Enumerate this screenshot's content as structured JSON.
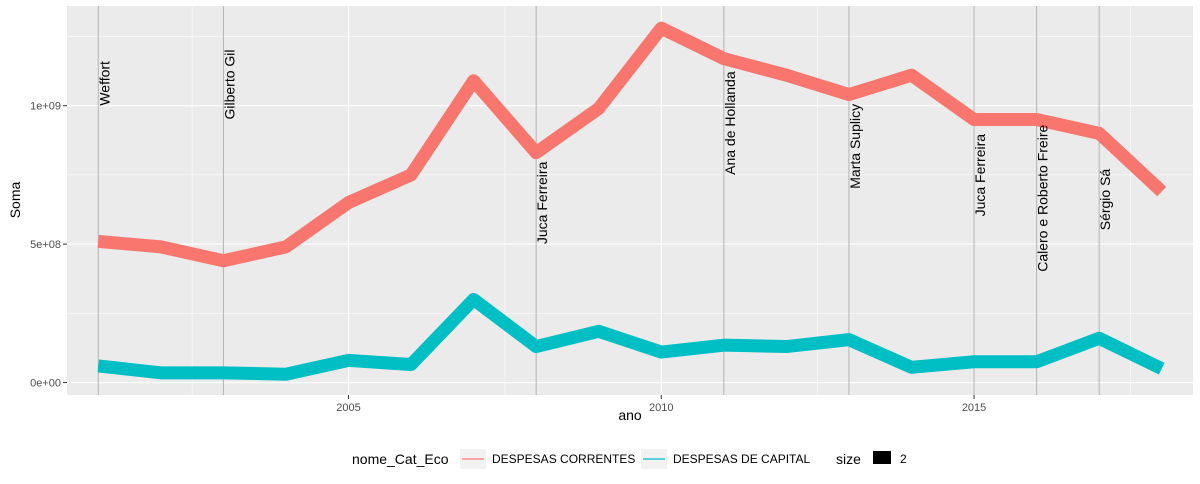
{
  "chart_data": {
    "type": "line",
    "title": "",
    "xlabel": "ano",
    "ylabel": "Soma",
    "xlim": [
      2000.5,
      2018.5
    ],
    "ylim": [
      -45000000,
      1360000000
    ],
    "x_ticks": [
      2005,
      2010,
      2015
    ],
    "y_ticks": [
      0,
      500000000,
      1000000000
    ],
    "y_tick_labels": [
      "0e+00",
      "5e+08",
      "1e+09"
    ],
    "grid": true,
    "series": [
      {
        "name": "DESPESAS CORRENTES",
        "color": "#F8766D",
        "x": [
          2001,
          2002,
          2003,
          2004,
          2005,
          2006,
          2007,
          2008,
          2009,
          2010,
          2011,
          2012,
          2013,
          2014,
          2015,
          2016,
          2017,
          2018
        ],
        "values": [
          510000000,
          490000000,
          440000000,
          490000000,
          650000000,
          750000000,
          1090000000,
          830000000,
          990000000,
          1280000000,
          1170000000,
          1110000000,
          1040000000,
          1110000000,
          950000000,
          950000000,
          900000000,
          690000000
        ]
      },
      {
        "name": "DESPESAS DE CAPITAL",
        "color": "#00BFC4",
        "x": [
          2001,
          2002,
          2003,
          2004,
          2005,
          2006,
          2007,
          2008,
          2009,
          2010,
          2011,
          2012,
          2013,
          2014,
          2015,
          2016,
          2017,
          2018
        ],
        "values": [
          60000000,
          35000000,
          35000000,
          30000000,
          80000000,
          65000000,
          300000000,
          130000000,
          185000000,
          110000000,
          135000000,
          130000000,
          155000000,
          55000000,
          75000000,
          75000000,
          160000000,
          50000000
        ]
      }
    ],
    "vlines": [
      {
        "x": 2001,
        "label": "Weffort",
        "y": 1000000000
      },
      {
        "x": 2003,
        "label": "Gilberto Gil",
        "y": 950000000
      },
      {
        "x": 2008,
        "label": "Juca Ferreira",
        "y": 500000000
      },
      {
        "x": 2011,
        "label": "Ana de Hollanda",
        "y": 750000000
      },
      {
        "x": 2013,
        "label": "Marta Suplicy",
        "y": 700000000
      },
      {
        "x": 2015,
        "label": "Juca Ferreira",
        "y": 600000000
      },
      {
        "x": 2016,
        "label": "Calero e Roberto Freire",
        "y": 400000000
      },
      {
        "x": 2017,
        "label": "Sérgio Sá",
        "y": 550000000
      }
    ],
    "legend": {
      "placement": "bottom",
      "color_title": "nome_Cat_Eco",
      "size_title": "size",
      "size_value": "2"
    }
  }
}
